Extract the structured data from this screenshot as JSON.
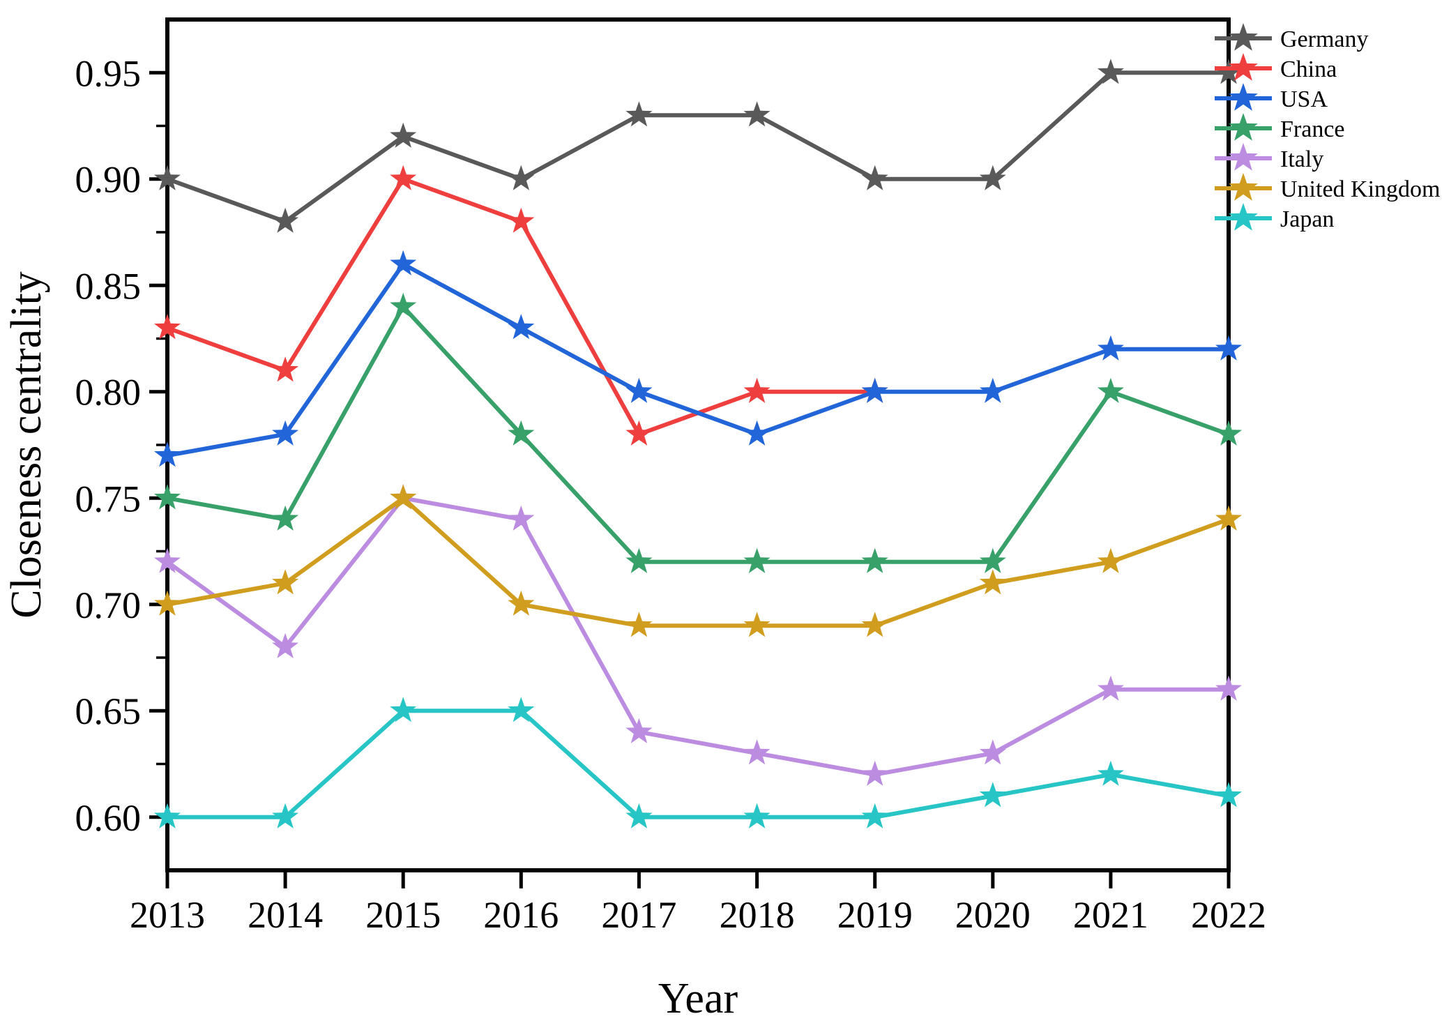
{
  "chart_data": {
    "type": "line",
    "title": "",
    "xlabel": "Year",
    "ylabel": "Closeness centrality",
    "x": [
      "2013",
      "2014",
      "2015",
      "2016",
      "2017",
      "2018",
      "2019",
      "2020",
      "2021",
      "2022"
    ],
    "ylim": [
      0.575,
      0.975
    ],
    "yticks_major": [
      0.6,
      0.65,
      0.7,
      0.75,
      0.8,
      0.85,
      0.9,
      0.95
    ],
    "yticks_minor": [
      0.625,
      0.675,
      0.725,
      0.775,
      0.825,
      0.875,
      0.925
    ],
    "ytick_decimals": 2,
    "grid": false,
    "marker": "star",
    "legend_position": "top-right",
    "axis_color": "#000000",
    "series": [
      {
        "name": "Germany",
        "color": "#595959",
        "values": [
          0.9,
          0.88,
          0.92,
          0.9,
          0.93,
          0.93,
          0.9,
          0.9,
          0.95,
          0.95
        ]
      },
      {
        "name": "China",
        "color": "#ef3e3e",
        "values": [
          0.83,
          0.81,
          0.9,
          0.88,
          0.78,
          0.8,
          0.8,
          null,
          null,
          null
        ]
      },
      {
        "name": "USA",
        "color": "#2165d8",
        "values": [
          0.77,
          0.78,
          0.86,
          0.83,
          0.8,
          0.78,
          0.8,
          0.8,
          0.82,
          0.82
        ]
      },
      {
        "name": "France",
        "color": "#38a169",
        "values": [
          0.75,
          0.74,
          0.84,
          0.78,
          0.72,
          0.72,
          0.72,
          0.72,
          0.8,
          0.78
        ]
      },
      {
        "name": "Italy",
        "color": "#bb8ce0",
        "values": [
          0.72,
          0.68,
          0.75,
          0.74,
          0.64,
          0.63,
          0.62,
          0.63,
          0.66,
          0.66
        ]
      },
      {
        "name": "United Kingdom",
        "color": "#d19d1e",
        "values": [
          0.7,
          0.71,
          0.75,
          0.7,
          0.69,
          0.69,
          0.69,
          0.71,
          0.72,
          0.74
        ]
      },
      {
        "name": "Japan",
        "color": "#27c5c5",
        "values": [
          0.6,
          0.6,
          0.65,
          0.65,
          0.6,
          0.6,
          0.6,
          0.61,
          0.62,
          0.61
        ]
      }
    ]
  }
}
